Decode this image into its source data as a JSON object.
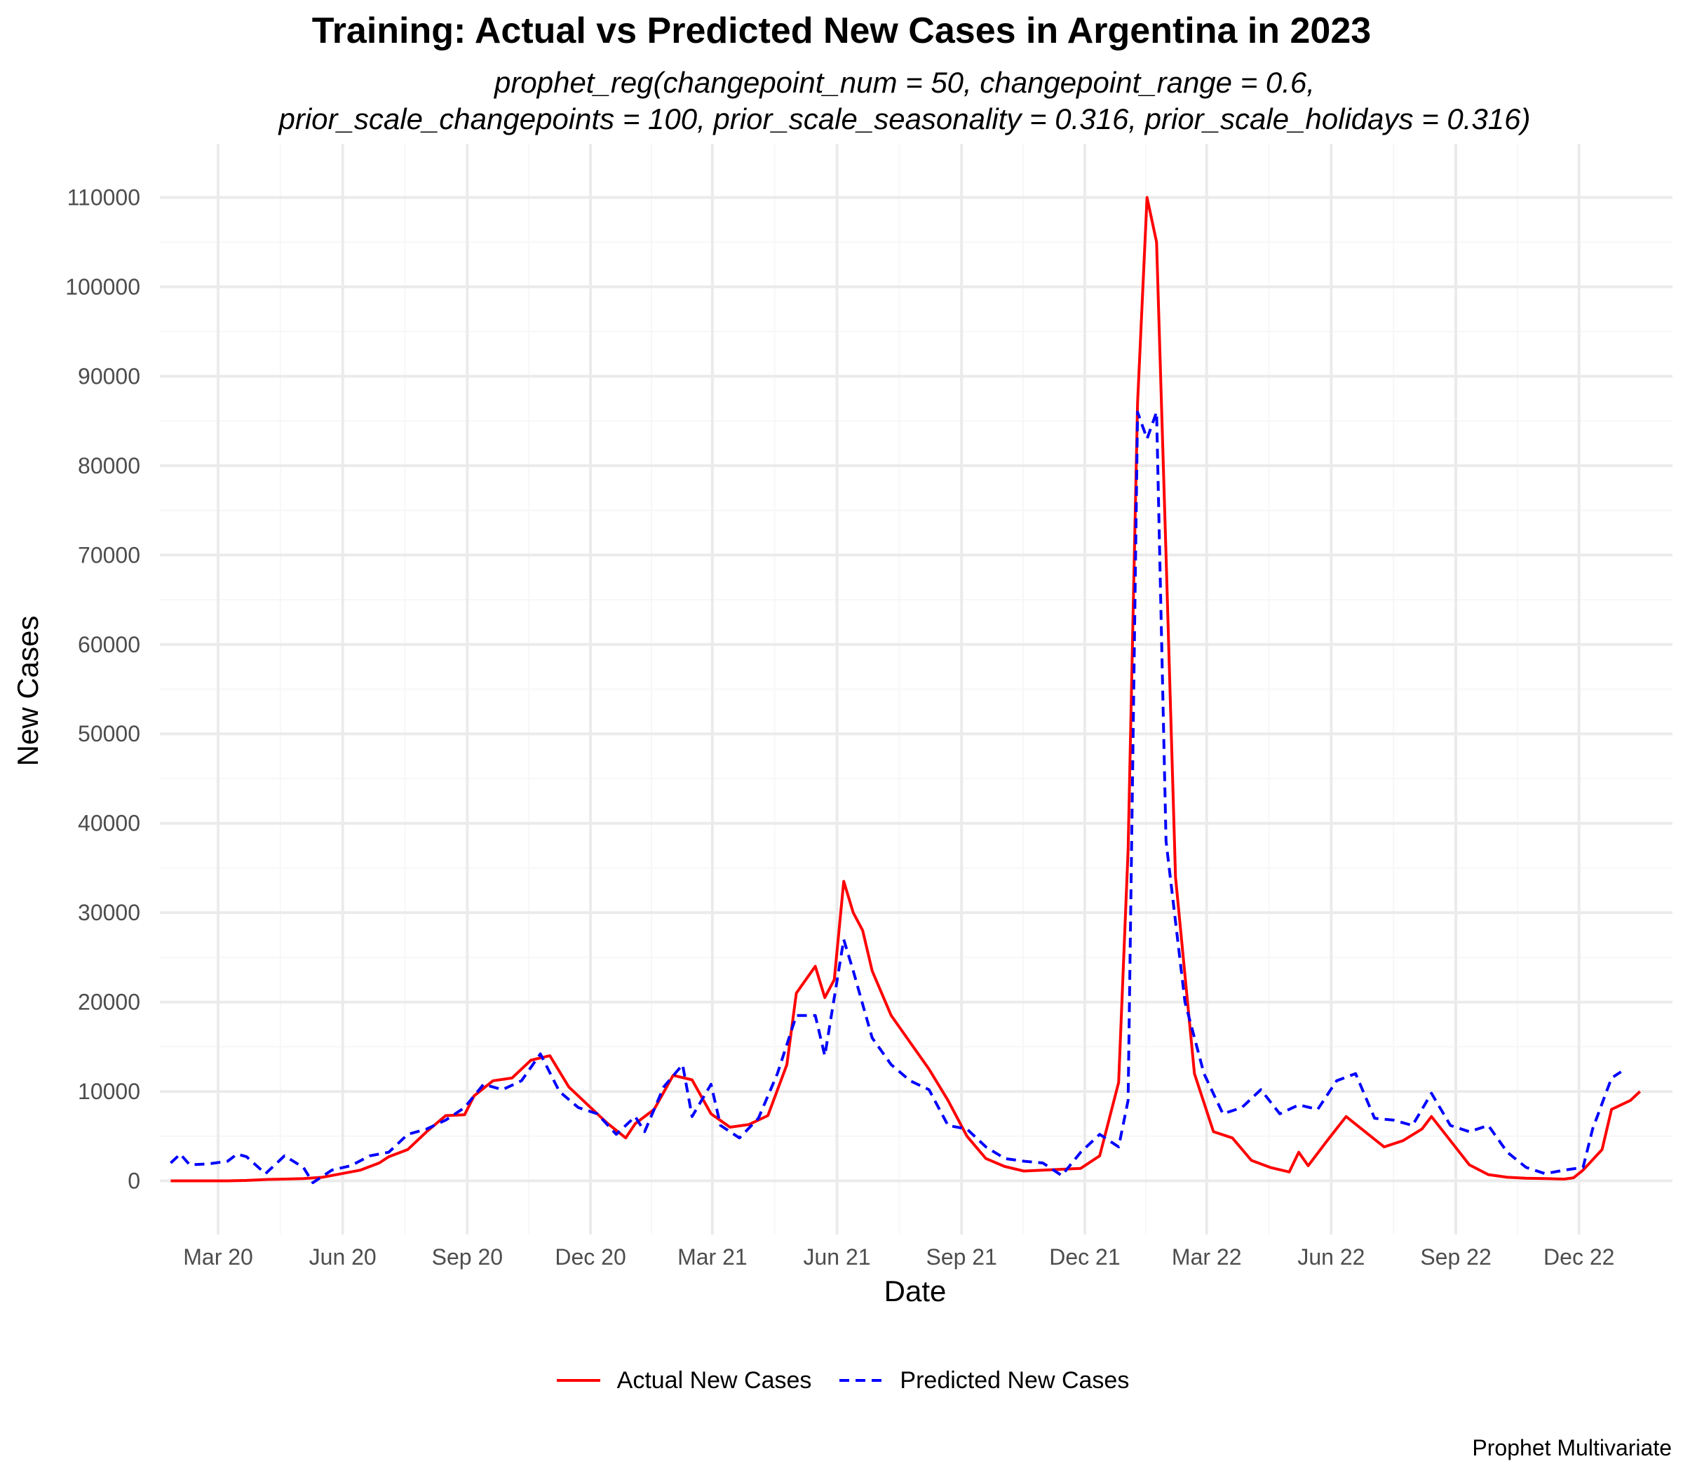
{
  "chart_data": {
    "type": "line",
    "title": "Training: Actual vs Predicted New Cases in Argentina in 2023",
    "subtitle": "prophet_reg(changepoint_num = 50, changepoint_range = 0.6,\n    prior_scale_changepoints = 100, prior_scale_seasonality = 0.316, prior_scale_holidays = 0.316)",
    "xlabel": "Date",
    "ylabel": "New Cases",
    "caption": "Prophet Multivariate",
    "xlim": [
      "2020-01-18",
      "2023-02-08"
    ],
    "ylim": [
      -6000,
      116000
    ],
    "x_ticks": [
      {
        "date": "2020-03-01",
        "label": "Mar 20"
      },
      {
        "date": "2020-06-01",
        "label": "Jun 20"
      },
      {
        "date": "2020-09-01",
        "label": "Sep 20"
      },
      {
        "date": "2020-12-01",
        "label": "Dec 20"
      },
      {
        "date": "2021-03-01",
        "label": "Mar 21"
      },
      {
        "date": "2021-06-01",
        "label": "Jun 21"
      },
      {
        "date": "2021-09-01",
        "label": "Sep 21"
      },
      {
        "date": "2021-12-01",
        "label": "Dec 21"
      },
      {
        "date": "2022-03-01",
        "label": "Mar 22"
      },
      {
        "date": "2022-06-01",
        "label": "Jun 22"
      },
      {
        "date": "2022-09-01",
        "label": "Sep 22"
      },
      {
        "date": "2022-12-01",
        "label": "Dec 22"
      }
    ],
    "y_ticks": [
      0,
      10000,
      20000,
      30000,
      40000,
      50000,
      60000,
      70000,
      80000,
      90000,
      100000,
      110000
    ],
    "grid": true,
    "legend_position": "bottom",
    "series": [
      {
        "name": "Actual New Cases",
        "color": "#ff0000",
        "line_style": "solid",
        "points": [
          [
            "2020-01-26",
            0
          ],
          [
            "2020-02-09",
            0
          ],
          [
            "2020-02-23",
            0
          ],
          [
            "2020-03-08",
            0
          ],
          [
            "2020-03-22",
            50
          ],
          [
            "2020-04-05",
            150
          ],
          [
            "2020-04-19",
            200
          ],
          [
            "2020-05-03",
            250
          ],
          [
            "2020-05-17",
            400
          ],
          [
            "2020-05-31",
            800
          ],
          [
            "2020-06-14",
            1200
          ],
          [
            "2020-06-28",
            2000
          ],
          [
            "2020-07-05",
            2700
          ],
          [
            "2020-07-19",
            3500
          ],
          [
            "2020-08-02",
            5500
          ],
          [
            "2020-08-16",
            7300
          ],
          [
            "2020-08-30",
            7400
          ],
          [
            "2020-09-06",
            9500
          ],
          [
            "2020-09-20",
            11200
          ],
          [
            "2020-10-04",
            11500
          ],
          [
            "2020-10-18",
            13500
          ],
          [
            "2020-11-01",
            14000
          ],
          [
            "2020-11-15",
            10500
          ],
          [
            "2020-11-29",
            8500
          ],
          [
            "2020-12-13",
            6500
          ],
          [
            "2020-12-27",
            4800
          ],
          [
            "2021-01-03",
            6400
          ],
          [
            "2021-01-17",
            8000
          ],
          [
            "2021-01-31",
            11800
          ],
          [
            "2021-02-14",
            11300
          ],
          [
            "2021-02-28",
            7500
          ],
          [
            "2021-03-14",
            6000
          ],
          [
            "2021-03-28",
            6300
          ],
          [
            "2021-04-11",
            7300
          ],
          [
            "2021-04-25",
            13000
          ],
          [
            "2021-05-02",
            21000
          ],
          [
            "2021-05-16",
            24000
          ],
          [
            "2021-05-23",
            20500
          ],
          [
            "2021-05-30",
            22500
          ],
          [
            "2021-06-06",
            33500
          ],
          [
            "2021-06-13",
            30000
          ],
          [
            "2021-06-20",
            28000
          ],
          [
            "2021-06-27",
            23500
          ],
          [
            "2021-07-11",
            18500
          ],
          [
            "2021-07-25",
            15500
          ],
          [
            "2021-08-08",
            12500
          ],
          [
            "2021-08-22",
            9000
          ],
          [
            "2021-09-05",
            5000
          ],
          [
            "2021-09-19",
            2500
          ],
          [
            "2021-10-03",
            1600
          ],
          [
            "2021-10-17",
            1100
          ],
          [
            "2021-10-31",
            1200
          ],
          [
            "2021-11-14",
            1300
          ],
          [
            "2021-11-28",
            1400
          ],
          [
            "2021-12-12",
            2800
          ],
          [
            "2021-12-26",
            11000
          ],
          [
            "2022-01-02",
            37000
          ],
          [
            "2022-01-09",
            87000
          ],
          [
            "2022-01-16",
            110000
          ],
          [
            "2022-01-23",
            105000
          ],
          [
            "2022-01-30",
            70000
          ],
          [
            "2022-02-06",
            34000
          ],
          [
            "2022-02-20",
            12000
          ],
          [
            "2022-03-06",
            5500
          ],
          [
            "2022-03-20",
            4800
          ],
          [
            "2022-04-03",
            2300
          ],
          [
            "2022-04-17",
            1500
          ],
          [
            "2022-05-01",
            1000
          ],
          [
            "2022-05-08",
            3200
          ],
          [
            "2022-05-15",
            1700
          ],
          [
            "2022-05-29",
            4500
          ],
          [
            "2022-06-12",
            7200
          ],
          [
            "2022-06-26",
            5500
          ],
          [
            "2022-07-10",
            3800
          ],
          [
            "2022-07-24",
            4500
          ],
          [
            "2022-08-07",
            5800
          ],
          [
            "2022-08-14",
            7200
          ],
          [
            "2022-08-28",
            4500
          ],
          [
            "2022-09-11",
            1800
          ],
          [
            "2022-09-25",
            700
          ],
          [
            "2022-10-09",
            400
          ],
          [
            "2022-10-23",
            300
          ],
          [
            "2022-11-06",
            250
          ],
          [
            "2022-11-20",
            200
          ],
          [
            "2022-11-27",
            350
          ],
          [
            "2022-12-04",
            1200
          ],
          [
            "2022-12-18",
            3500
          ],
          [
            "2022-12-25",
            8000
          ],
          [
            "2023-01-08",
            9000
          ],
          [
            "2023-01-15",
            10000
          ]
        ]
      },
      {
        "name": "Predicted New Cases",
        "color": "#0000ff",
        "line_style": "dashed",
        "points": [
          [
            "2020-01-26",
            2000
          ],
          [
            "2020-02-02",
            3000
          ],
          [
            "2020-02-09",
            1800
          ],
          [
            "2020-02-23",
            1900
          ],
          [
            "2020-03-08",
            2200
          ],
          [
            "2020-03-15",
            3000
          ],
          [
            "2020-03-22",
            2700
          ],
          [
            "2020-04-05",
            800
          ],
          [
            "2020-04-19",
            2800
          ],
          [
            "2020-05-03",
            1500
          ],
          [
            "2020-05-10",
            -200
          ],
          [
            "2020-05-24",
            1200
          ],
          [
            "2020-06-07",
            1700
          ],
          [
            "2020-06-21",
            2800
          ],
          [
            "2020-07-05",
            3200
          ],
          [
            "2020-07-19",
            5200
          ],
          [
            "2020-08-02",
            5800
          ],
          [
            "2020-08-16",
            6800
          ],
          [
            "2020-08-30",
            8200
          ],
          [
            "2020-09-13",
            10800
          ],
          [
            "2020-09-27",
            10200
          ],
          [
            "2020-10-11",
            11200
          ],
          [
            "2020-10-25",
            14200
          ],
          [
            "2020-11-08",
            10000
          ],
          [
            "2020-11-22",
            8200
          ],
          [
            "2020-12-06",
            7500
          ],
          [
            "2020-12-20",
            5200
          ],
          [
            "2021-01-03",
            7200
          ],
          [
            "2021-01-10",
            5500
          ],
          [
            "2021-01-24",
            10500
          ],
          [
            "2021-02-07",
            13000
          ],
          [
            "2021-02-14",
            7200
          ],
          [
            "2021-02-28",
            10800
          ],
          [
            "2021-03-07",
            6200
          ],
          [
            "2021-03-21",
            4800
          ],
          [
            "2021-04-04",
            7000
          ],
          [
            "2021-04-18",
            12000
          ],
          [
            "2021-05-02",
            18500
          ],
          [
            "2021-05-16",
            18500
          ],
          [
            "2021-05-23",
            14000
          ],
          [
            "2021-06-06",
            27000
          ],
          [
            "2021-06-13",
            23500
          ],
          [
            "2021-06-27",
            16000
          ],
          [
            "2021-07-11",
            13000
          ],
          [
            "2021-07-25",
            11200
          ],
          [
            "2021-08-08",
            10200
          ],
          [
            "2021-08-22",
            6200
          ],
          [
            "2021-09-05",
            5800
          ],
          [
            "2021-09-19",
            3800
          ],
          [
            "2021-10-03",
            2500
          ],
          [
            "2021-10-17",
            2200
          ],
          [
            "2021-10-31",
            2000
          ],
          [
            "2021-11-14",
            600
          ],
          [
            "2021-11-28",
            3200
          ],
          [
            "2021-12-12",
            5200
          ],
          [
            "2021-12-26",
            3800
          ],
          [
            "2022-01-02",
            9000
          ],
          [
            "2022-01-09",
            86000
          ],
          [
            "2022-01-16",
            83000
          ],
          [
            "2022-01-23",
            86000
          ],
          [
            "2022-01-30",
            38000
          ],
          [
            "2022-02-13",
            20000
          ],
          [
            "2022-02-27",
            12000
          ],
          [
            "2022-03-13",
            7500
          ],
          [
            "2022-03-27",
            8200
          ],
          [
            "2022-04-10",
            10200
          ],
          [
            "2022-04-24",
            7500
          ],
          [
            "2022-05-08",
            8500
          ],
          [
            "2022-05-22",
            8000
          ],
          [
            "2022-06-05",
            11200
          ],
          [
            "2022-06-19",
            12000
          ],
          [
            "2022-07-03",
            7000
          ],
          [
            "2022-07-17",
            6800
          ],
          [
            "2022-07-31",
            6200
          ],
          [
            "2022-08-14",
            9800
          ],
          [
            "2022-08-28",
            6200
          ],
          [
            "2022-09-11",
            5500
          ],
          [
            "2022-09-25",
            6200
          ],
          [
            "2022-10-09",
            3200
          ],
          [
            "2022-10-23",
            1500
          ],
          [
            "2022-11-06",
            800
          ],
          [
            "2022-11-20",
            1200
          ],
          [
            "2022-12-04",
            1500
          ],
          [
            "2022-12-11",
            5800
          ],
          [
            "2022-12-25",
            11500
          ],
          [
            "2023-01-01",
            12200
          ]
        ]
      }
    ]
  }
}
